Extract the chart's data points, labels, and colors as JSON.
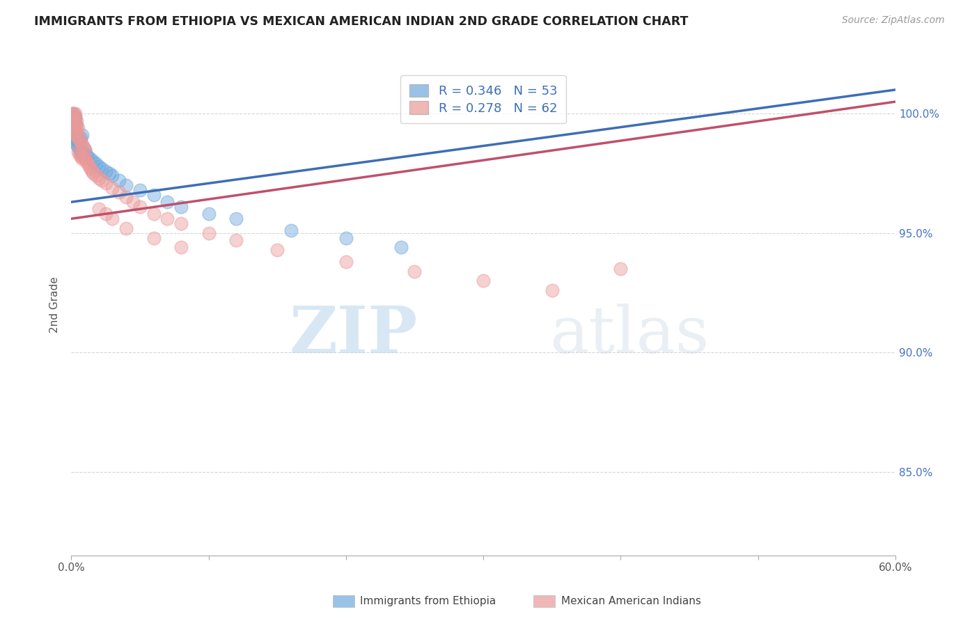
{
  "title": "IMMIGRANTS FROM ETHIOPIA VS MEXICAN AMERICAN INDIAN 2ND GRADE CORRELATION CHART",
  "source": "Source: ZipAtlas.com",
  "xlabel": "",
  "ylabel": "2nd Grade",
  "xlim": [
    0.0,
    0.6
  ],
  "ylim": [
    0.815,
    1.025
  ],
  "xticks": [
    0.0,
    0.1,
    0.2,
    0.3,
    0.4,
    0.5,
    0.6
  ],
  "xticklabels": [
    "0.0%",
    "",
    "",
    "",
    "",
    "",
    "60.0%"
  ],
  "yticks": [
    0.85,
    0.9,
    0.95,
    1.0
  ],
  "yticklabels": [
    "85.0%",
    "90.0%",
    "95.0%",
    "100.0%"
  ],
  "blue_R": 0.346,
  "blue_N": 53,
  "pink_R": 0.278,
  "pink_N": 62,
  "blue_color": "#6fa8dc",
  "pink_color": "#ea9999",
  "blue_line_color": "#3d6eb5",
  "pink_line_color": "#c0506a",
  "watermark_zip": "ZIP",
  "watermark_atlas": "atlas",
  "legend_label_blue": "Immigrants from Ethiopia",
  "legend_label_pink": "Mexican American Indians",
  "blue_line_x0": 0.0,
  "blue_line_y0": 0.963,
  "blue_line_x1": 0.6,
  "blue_line_y1": 1.01,
  "pink_line_x0": 0.0,
  "pink_line_y0": 0.956,
  "pink_line_x1": 0.6,
  "pink_line_y1": 1.005,
  "blue_x": [
    0.001,
    0.002,
    0.001,
    0.002,
    0.003,
    0.001,
    0.002,
    0.003,
    0.004,
    0.001,
    0.002,
    0.003,
    0.001,
    0.002,
    0.001,
    0.001,
    0.002,
    0.003,
    0.004,
    0.005,
    0.003,
    0.004,
    0.005,
    0.006,
    0.007,
    0.008,
    0.005,
    0.006,
    0.007,
    0.008,
    0.009,
    0.01,
    0.011,
    0.012,
    0.014,
    0.016,
    0.018,
    0.02,
    0.022,
    0.025,
    0.028,
    0.03,
    0.035,
    0.04,
    0.05,
    0.06,
    0.07,
    0.08,
    0.1,
    0.12,
    0.16,
    0.2,
    0.24
  ],
  "blue_y": [
    1.0,
    0.999,
    0.998,
    0.997,
    0.999,
    0.996,
    0.997,
    0.998,
    0.995,
    0.994,
    0.995,
    0.996,
    0.993,
    0.992,
    0.991,
    0.99,
    0.991,
    0.992,
    0.989,
    0.99,
    0.988,
    0.987,
    0.988,
    0.989,
    0.99,
    0.991,
    0.986,
    0.985,
    0.984,
    0.983,
    0.984,
    0.985,
    0.983,
    0.982,
    0.981,
    0.98,
    0.979,
    0.978,
    0.977,
    0.976,
    0.975,
    0.974,
    0.972,
    0.97,
    0.968,
    0.966,
    0.963,
    0.961,
    0.958,
    0.956,
    0.951,
    0.948,
    0.944
  ],
  "pink_x": [
    0.001,
    0.001,
    0.002,
    0.001,
    0.002,
    0.003,
    0.002,
    0.003,
    0.001,
    0.002,
    0.003,
    0.004,
    0.003,
    0.004,
    0.005,
    0.002,
    0.003,
    0.004,
    0.005,
    0.006,
    0.007,
    0.008,
    0.009,
    0.01,
    0.005,
    0.006,
    0.007,
    0.008,
    0.009,
    0.01,
    0.011,
    0.012,
    0.013,
    0.014,
    0.015,
    0.016,
    0.018,
    0.02,
    0.022,
    0.025,
    0.03,
    0.035,
    0.04,
    0.045,
    0.05,
    0.06,
    0.07,
    0.08,
    0.1,
    0.12,
    0.15,
    0.2,
    0.25,
    0.3,
    0.35,
    0.02,
    0.025,
    0.03,
    0.04,
    0.06,
    0.08,
    0.4
  ],
  "pink_y": [
    1.0,
    0.999,
    1.0,
    0.998,
    0.999,
    1.0,
    0.997,
    0.998,
    0.996,
    0.995,
    0.996,
    0.997,
    0.994,
    0.993,
    0.994,
    0.992,
    0.993,
    0.991,
    0.99,
    0.989,
    0.988,
    0.987,
    0.986,
    0.985,
    0.984,
    0.983,
    0.982,
    0.981,
    0.982,
    0.981,
    0.98,
    0.979,
    0.978,
    0.977,
    0.976,
    0.975,
    0.974,
    0.973,
    0.972,
    0.971,
    0.969,
    0.967,
    0.965,
    0.963,
    0.961,
    0.958,
    0.956,
    0.954,
    0.95,
    0.947,
    0.943,
    0.938,
    0.934,
    0.93,
    0.926,
    0.96,
    0.958,
    0.956,
    0.952,
    0.948,
    0.944,
    0.935
  ]
}
